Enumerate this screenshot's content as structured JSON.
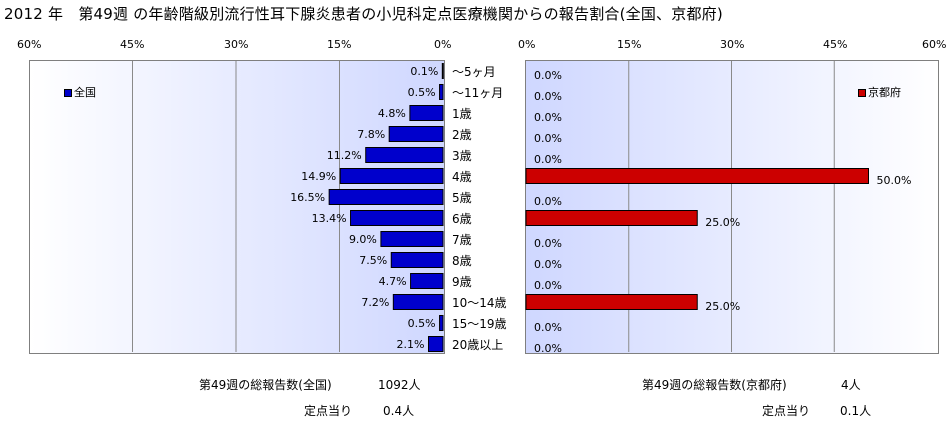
{
  "title": "2012 年　第49週 の年齢階級別流行性耳下腺炎患者の小児科定点医療機関からの報告割合(全国、京都府)",
  "colors": {
    "national": "#0000cc",
    "kyoto": "#cc0000",
    "panel_start": "#ffffff",
    "panel_end": "#cfd7ff"
  },
  "chart_data": [
    {
      "type": "bar",
      "orientation": "horizontal",
      "direction": "reversed",
      "xlim": [
        0,
        60
      ],
      "xticks": [
        "60%",
        "45%",
        "30%",
        "15%",
        "0%"
      ],
      "grid": true,
      "legend": "全国",
      "legend_position": "top-left",
      "categories": [
        "～5ヶ月",
        "～11ヶ月",
        "1歳",
        "2歳",
        "3歳",
        "4歳",
        "5歳",
        "6歳",
        "7歳",
        "8歳",
        "9歳",
        "10～14歳",
        "15～19歳",
        "20歳以上"
      ],
      "values": [
        0.1,
        0.5,
        4.8,
        7.8,
        11.2,
        14.9,
        16.5,
        13.4,
        9.0,
        7.5,
        4.7,
        7.2,
        0.5,
        2.1
      ],
      "labels": [
        "0.1%",
        "0.5%",
        "4.8%",
        "7.8%",
        "11.2%",
        "14.9%",
        "16.5%",
        "13.4%",
        "9.0%",
        "7.5%",
        "4.7%",
        "7.2%",
        "0.5%",
        "2.1%"
      ]
    },
    {
      "type": "bar",
      "orientation": "horizontal",
      "xlim": [
        0,
        60
      ],
      "xticks": [
        "0%",
        "15%",
        "30%",
        "45%",
        "60%"
      ],
      "grid": true,
      "legend": "京都府",
      "legend_position": "top-right",
      "categories": [
        "～5ヶ月",
        "～11ヶ月",
        "1歳",
        "2歳",
        "3歳",
        "4歳",
        "5歳",
        "6歳",
        "7歳",
        "8歳",
        "9歳",
        "10～14歳",
        "15～19歳",
        "20歳以上"
      ],
      "values": [
        0,
        0,
        0,
        0,
        0,
        50.0,
        0,
        25.0,
        0,
        0,
        0,
        25.0,
        0,
        0
      ],
      "labels": [
        "0.0%",
        "0.0%",
        "0.0%",
        "0.0%",
        "0.0%",
        "50.0%",
        "0.0%",
        "25.0%",
        "0.0%",
        "0.0%",
        "0.0%",
        "25.0%",
        "0.0%",
        "0.0%"
      ]
    }
  ],
  "footer": {
    "national_total_label": "第49週の総報告数(全国)",
    "national_total_value": "1092人",
    "national_per_label": "定点当り",
    "national_per_value": "0.4人",
    "kyoto_total_label": "第49週の総報告数(京都府)",
    "kyoto_total_value": "4人",
    "kyoto_per_label": "定点当り",
    "kyoto_per_value": "0.1人"
  }
}
